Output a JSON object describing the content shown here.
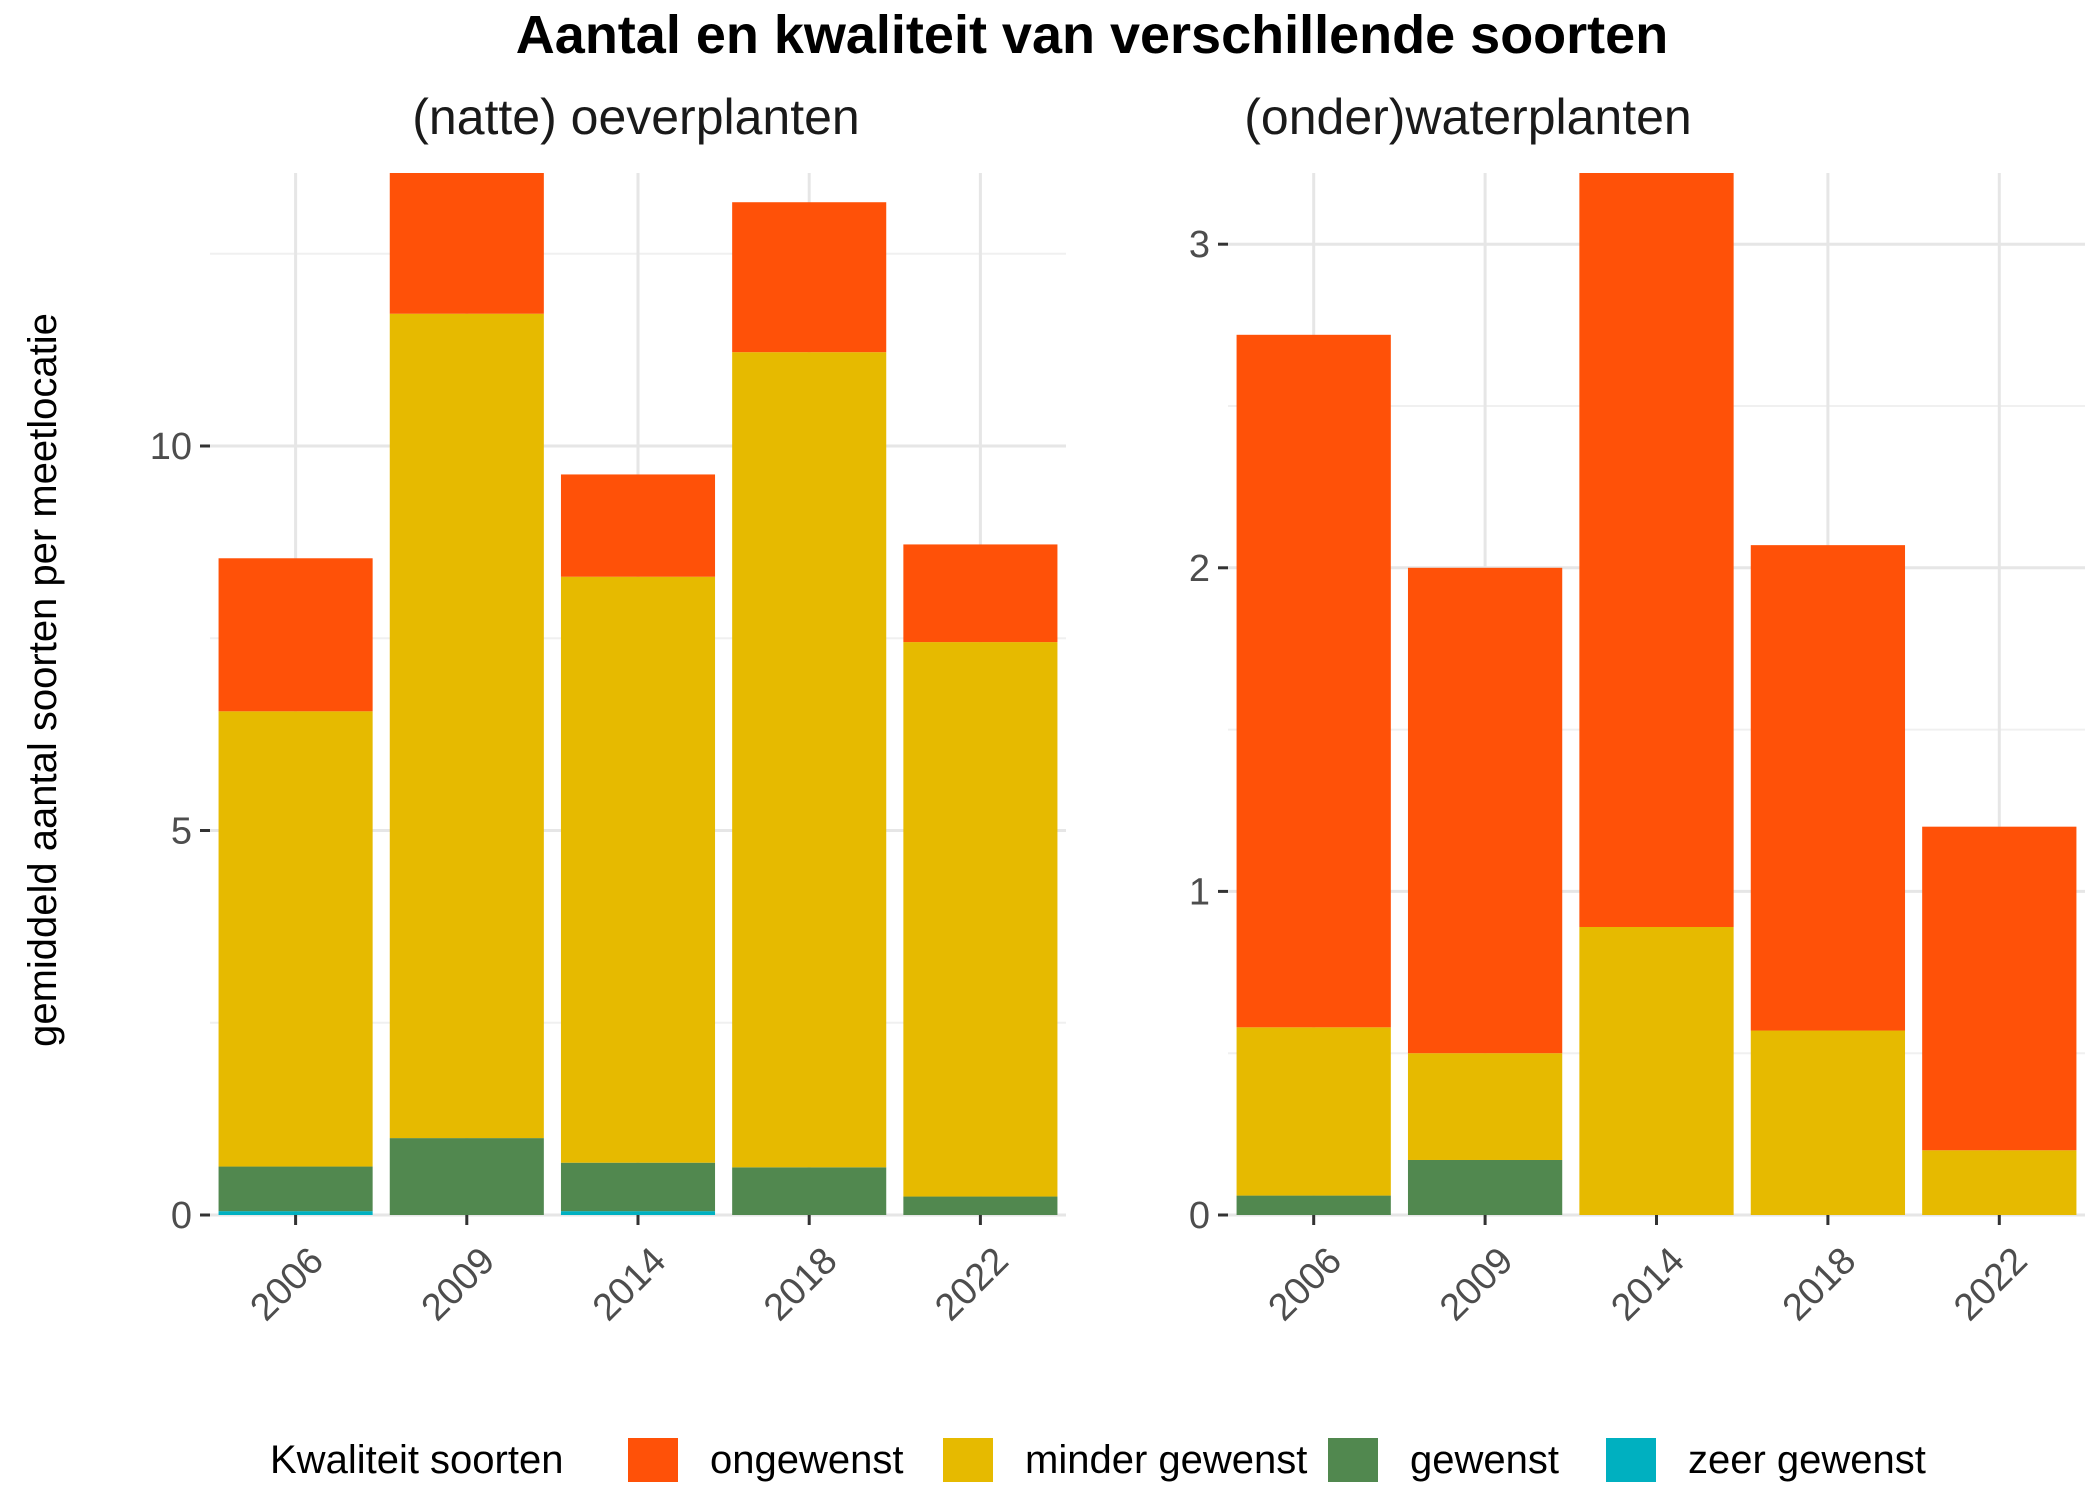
{
  "chart_data": {
    "type": "bar",
    "stacked": true,
    "title": "Aantal en kwaliteit van verschillende soorten",
    "ylabel": "gemiddeld aantal soorten per meetlocatie",
    "xlabel": "",
    "categories": [
      "2006",
      "2009",
      "2014",
      "2018",
      "2022"
    ],
    "legend": {
      "title": "Kwaliteit soorten",
      "placement": "bottom",
      "entries": [
        "ongewenst",
        "minder gewenst",
        "gewenst",
        "zeer gewenst"
      ]
    },
    "colors": {
      "ongewenst": "#FF5108",
      "minder gewenst": "#E6BA00",
      "gewenst": "#51884F",
      "zeer gewenst": "#00B0C0"
    },
    "grid": true,
    "panels": [
      {
        "title": "(natte) oeverplanten",
        "ylim": [
          0,
          13.55
        ],
        "yticks": [
          0,
          5,
          10
        ],
        "series": [
          {
            "name": "zeer gewenst",
            "values": [
              0.05,
              0,
              0.05,
              0,
              0
            ]
          },
          {
            "name": "gewenst",
            "values": [
              0.58,
              1.0,
              0.63,
              0.62,
              0.24
            ]
          },
          {
            "name": "minder gewenst",
            "values": [
              5.92,
              10.72,
              7.62,
              10.6,
              7.21
            ]
          },
          {
            "name": "ongewenst",
            "values": [
              1.99,
              1.83,
              1.33,
              1.95,
              1.27
            ]
          }
        ]
      },
      {
        "title": "(onder)waterplanten",
        "ylim": [
          0,
          3.22
        ],
        "yticks": [
          0,
          1,
          2,
          3
        ],
        "series": [
          {
            "name": "zeer gewenst",
            "values": [
              0,
              0,
              0,
              0,
              0
            ]
          },
          {
            "name": "gewenst",
            "values": [
              0.06,
              0.17,
              0,
              0,
              0
            ]
          },
          {
            "name": "minder gewenst",
            "values": [
              0.52,
              0.33,
              0.89,
              0.57,
              0.2
            ]
          },
          {
            "name": "ongewenst",
            "values": [
              2.14,
              1.5,
              2.33,
              1.5,
              1.0
            ]
          }
        ]
      }
    ]
  }
}
